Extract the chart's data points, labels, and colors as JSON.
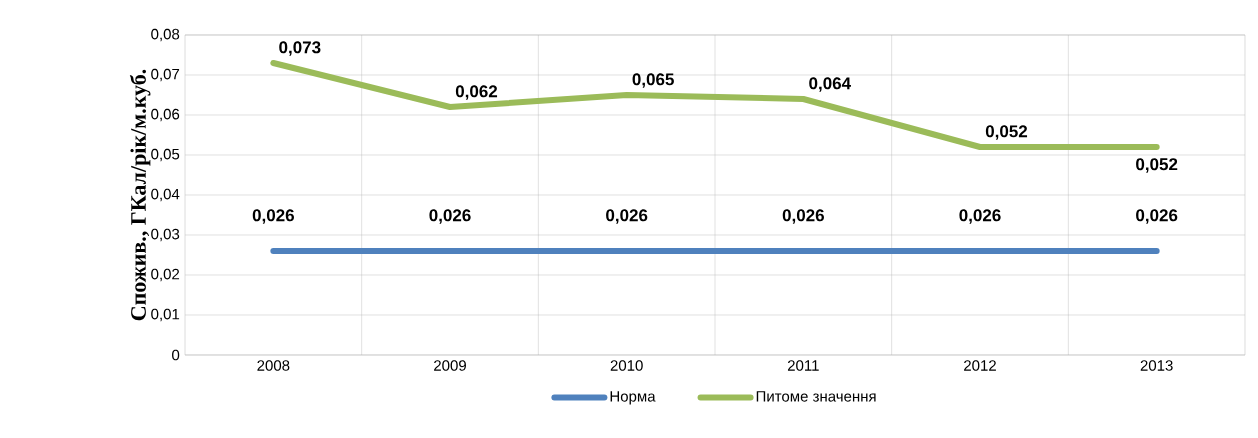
{
  "chart_data": {
    "type": "line",
    "ylabel": "Спожив., ГКал/рік/м.куб.",
    "categories": [
      "2008",
      "2009",
      "2010",
      "2011",
      "2012",
      "2013"
    ],
    "series": [
      {
        "name": "Норма",
        "color": "#4f81bd",
        "values": [
          0.026,
          0.026,
          0.026,
          0.026,
          0.026,
          0.026
        ],
        "value_labels": [
          "0,026",
          "0,026",
          "0,026",
          "0,026",
          "0,026",
          "0,026"
        ]
      },
      {
        "name": "Питоме значення",
        "color": "#9bbb59",
        "values": [
          0.073,
          0.062,
          0.065,
          0.064,
          0.052,
          0.052
        ],
        "value_labels": [
          "0,073",
          "0,062",
          "0,065",
          "0,064",
          "0,052",
          "0,052"
        ]
      }
    ],
    "ylim": [
      0,
      0.08
    ],
    "yticks": [
      {
        "value": 0,
        "label": "0"
      },
      {
        "value": 0.01,
        "label": "0,01"
      },
      {
        "value": 0.02,
        "label": "0,02"
      },
      {
        "value": 0.03,
        "label": "0,03"
      },
      {
        "value": 0.04,
        "label": "0,04"
      },
      {
        "value": 0.05,
        "label": "0,05"
      },
      {
        "value": 0.06,
        "label": "0,06"
      },
      {
        "value": 0.07,
        "label": "0,07"
      },
      {
        "value": 0.08,
        "label": "0,08"
      }
    ],
    "grid": true,
    "legend": "bottom",
    "marker": "none",
    "line_style": "solid"
  }
}
